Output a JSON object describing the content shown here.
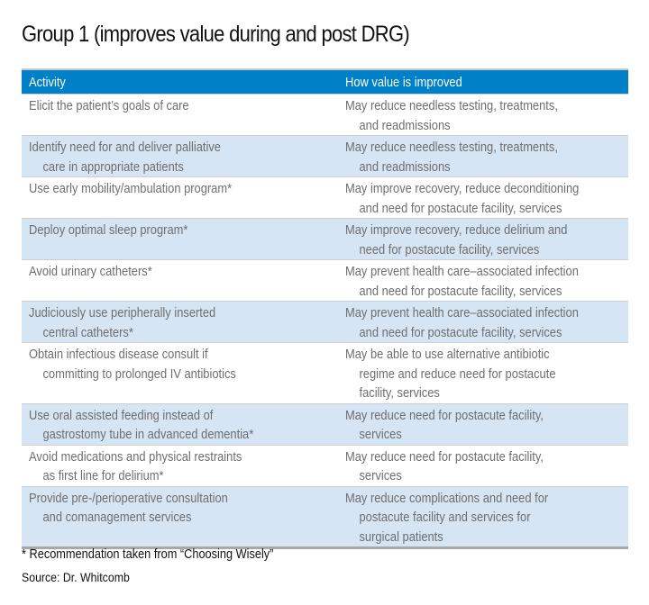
{
  "title": "Group 1 (improves value during and post DRG)",
  "columns": [
    "Activity",
    "How value is improved"
  ],
  "rows": [
    {
      "activity": [
        "Elicit the patient’s goals of care"
      ],
      "value": [
        "May reduce needless testing, treatments,",
        "and readmissions"
      ]
    },
    {
      "activity": [
        "Identify need for and deliver palliative",
        "care in appropriate patients"
      ],
      "value": [
        "May reduce needless testing, treatments,",
        "and readmissions"
      ]
    },
    {
      "activity": [
        "Use early mobility/ambulation program*"
      ],
      "value": [
        "May improve recovery, reduce deconditioning",
        "and need for postacute facility, services"
      ]
    },
    {
      "activity": [
        "Deploy optimal sleep program*"
      ],
      "value": [
        "May improve recovery, reduce delirium and",
        "need for postacute facility, services"
      ]
    },
    {
      "activity": [
        "Avoid urinary catheters*"
      ],
      "value": [
        "May prevent health care–associated infection",
        "and need for postacute facility, services"
      ]
    },
    {
      "activity": [
        "Judiciously use peripherally inserted",
        "central catheters*"
      ],
      "value": [
        "May prevent health care–associated infection",
        "and need for postacute facility, services"
      ]
    },
    {
      "activity": [
        "Obtain infectious disease consult if",
        "committing to prolonged IV antibiotics"
      ],
      "value": [
        "May be able to use alternative antibiotic",
        "regime and reduce need for postacute",
        "facility, services"
      ]
    },
    {
      "activity": [
        "Use oral assisted feeding instead of",
        "gastrostomy tube in advanced dementia*"
      ],
      "value": [
        "May reduce need for postacute facility,",
        "services"
      ]
    },
    {
      "activity": [
        "Avoid medications and physical restraints",
        "as first line for delirium*"
      ],
      "value": [
        "May reduce need for postacute facility,",
        "services"
      ]
    },
    {
      "activity": [
        "Provide pre-/perioperative consultation",
        "and comanagement services"
      ],
      "value": [
        "May reduce complications and need for",
        "postacute facility and services for",
        "surgical patients"
      ]
    }
  ],
  "footnote": "* Recommendation taken from “Choosing Wisely”",
  "source": "Source: Dr. Whitcomb",
  "colors": {
    "header": "#0080c6",
    "stripe": "#d6e5f3",
    "text": "#6d6e71"
  }
}
